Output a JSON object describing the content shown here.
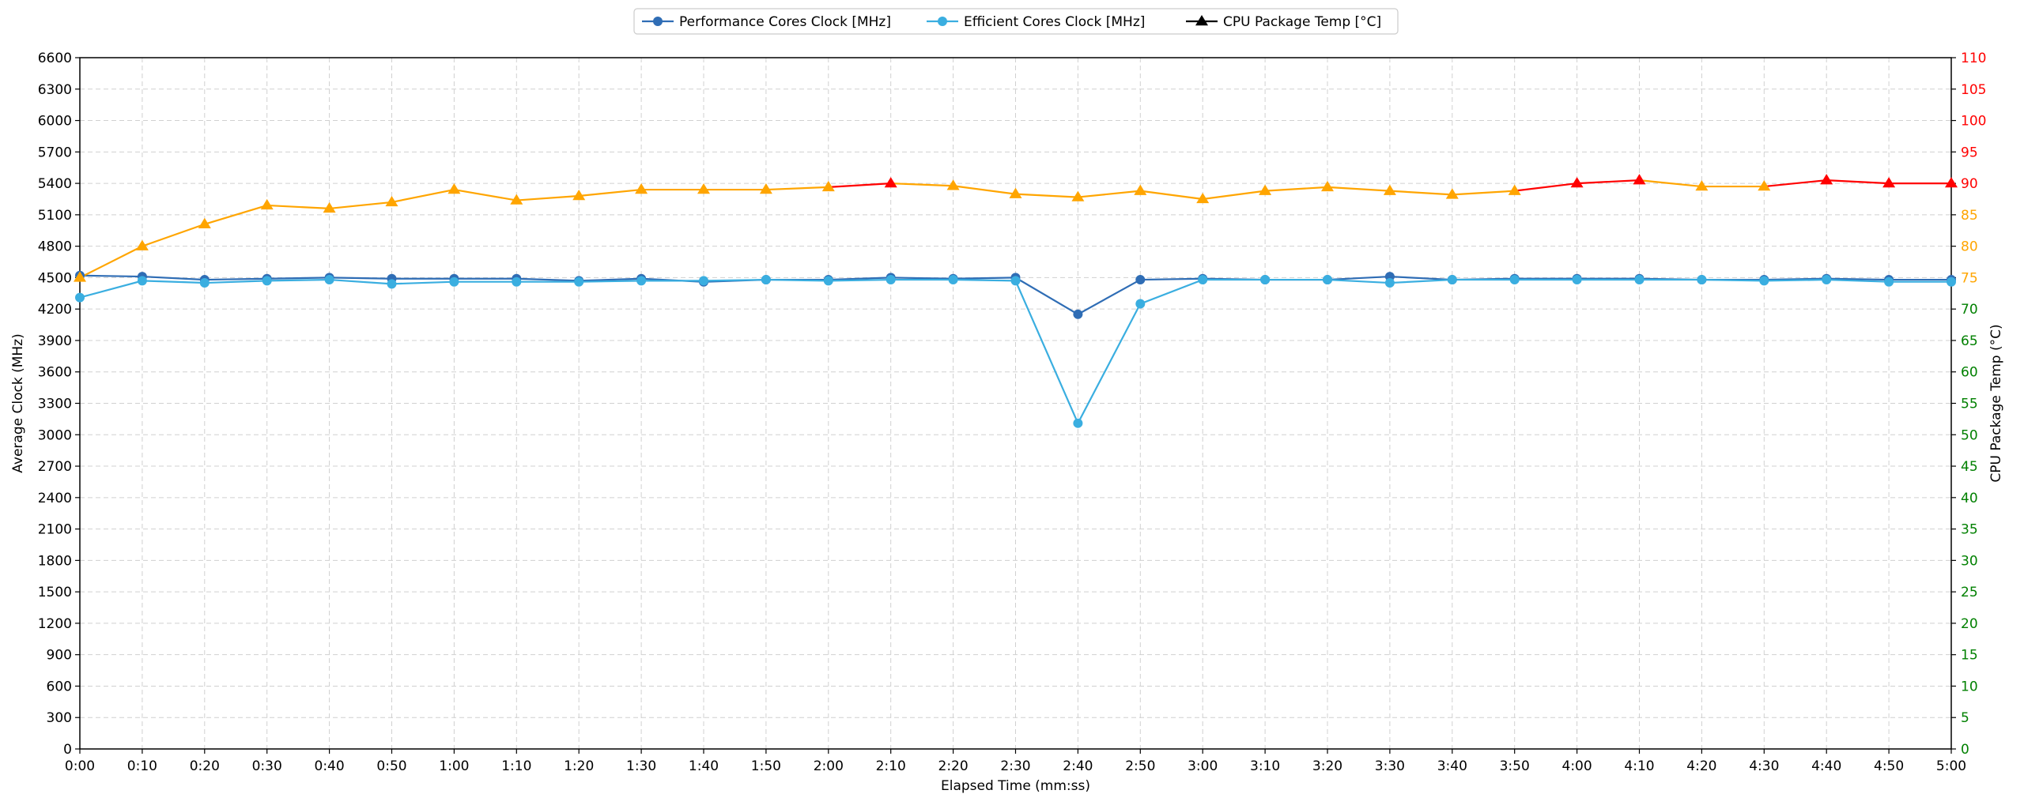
{
  "chart_data": {
    "type": "line",
    "xlabel": "Elapsed Time (mm:ss)",
    "ylabel_left": "Average Clock (MHz)",
    "ylabel_right": "CPU Package Temp (°C)",
    "ylim_left": [
      0,
      6600
    ],
    "ylim_right": [
      0,
      110
    ],
    "yticks_left": [
      0,
      300,
      600,
      900,
      1200,
      1500,
      1800,
      2100,
      2400,
      2700,
      3000,
      3300,
      3600,
      3900,
      4200,
      4500,
      4800,
      5100,
      5400,
      5700,
      6000,
      6300,
      6600
    ],
    "yticks_right": [
      0,
      5,
      10,
      15,
      20,
      25,
      30,
      35,
      40,
      45,
      50,
      55,
      60,
      65,
      70,
      75,
      80,
      85,
      90,
      95,
      100,
      105,
      110
    ],
    "grid": true,
    "legend_position": "top-center",
    "categories": [
      "0:00",
      "0:10",
      "0:20",
      "0:30",
      "0:40",
      "0:50",
      "1:00",
      "1:10",
      "1:20",
      "1:30",
      "1:40",
      "1:50",
      "2:00",
      "2:10",
      "2:20",
      "2:30",
      "2:40",
      "2:50",
      "3:00",
      "3:10",
      "3:20",
      "3:30",
      "3:40",
      "3:50",
      "4:00",
      "4:10",
      "4:20",
      "4:30",
      "4:40",
      "4:50",
      "5:00"
    ],
    "temp_zones": [
      {
        "min": 0,
        "max": 75,
        "color": "#008000"
      },
      {
        "min": 75,
        "max": 90,
        "color": "#FFA500"
      },
      {
        "min": 90,
        "max": 110,
        "color": "#FF0000"
      }
    ],
    "series": [
      {
        "name": "Performance Cores Clock [MHz]",
        "axis": "left",
        "marker": "circle",
        "color": "#2F6DB5",
        "values": [
          4520,
          4510,
          4480,
          4490,
          4500,
          4490,
          4490,
          4490,
          4470,
          4490,
          4460,
          4480,
          4480,
          4500,
          4490,
          4500,
          4150,
          4480,
          4490,
          4480,
          4480,
          4510,
          4480,
          4490,
          4490,
          4490,
          4480,
          4480,
          4490,
          4480,
          4480
        ]
      },
      {
        "name": "Efficient Cores Clock [MHz]",
        "axis": "left",
        "marker": "circle",
        "color": "#3AAEE0",
        "values": [
          4310,
          4470,
          4450,
          4470,
          4480,
          4440,
          4460,
          4460,
          4460,
          4470,
          4470,
          4480,
          4470,
          4480,
          4480,
          4470,
          3110,
          4250,
          4480,
          4480,
          4480,
          4450,
          4480,
          4480,
          4480,
          4480,
          4480,
          4470,
          4480,
          4460,
          4460
        ]
      },
      {
        "name": "CPU Package Temp [°C]",
        "axis": "right",
        "marker": "triangle",
        "color": "#000000",
        "values": [
          75,
          80,
          83.5,
          86.5,
          86,
          87,
          89,
          87.3,
          88,
          89,
          89,
          89,
          89.4,
          90,
          89.6,
          88.3,
          87.8,
          88.8,
          87.5,
          88.8,
          89.4,
          88.8,
          88.2,
          88.8,
          90,
          90.5,
          89.5,
          89.5,
          90.5,
          90,
          90
        ]
      }
    ]
  }
}
